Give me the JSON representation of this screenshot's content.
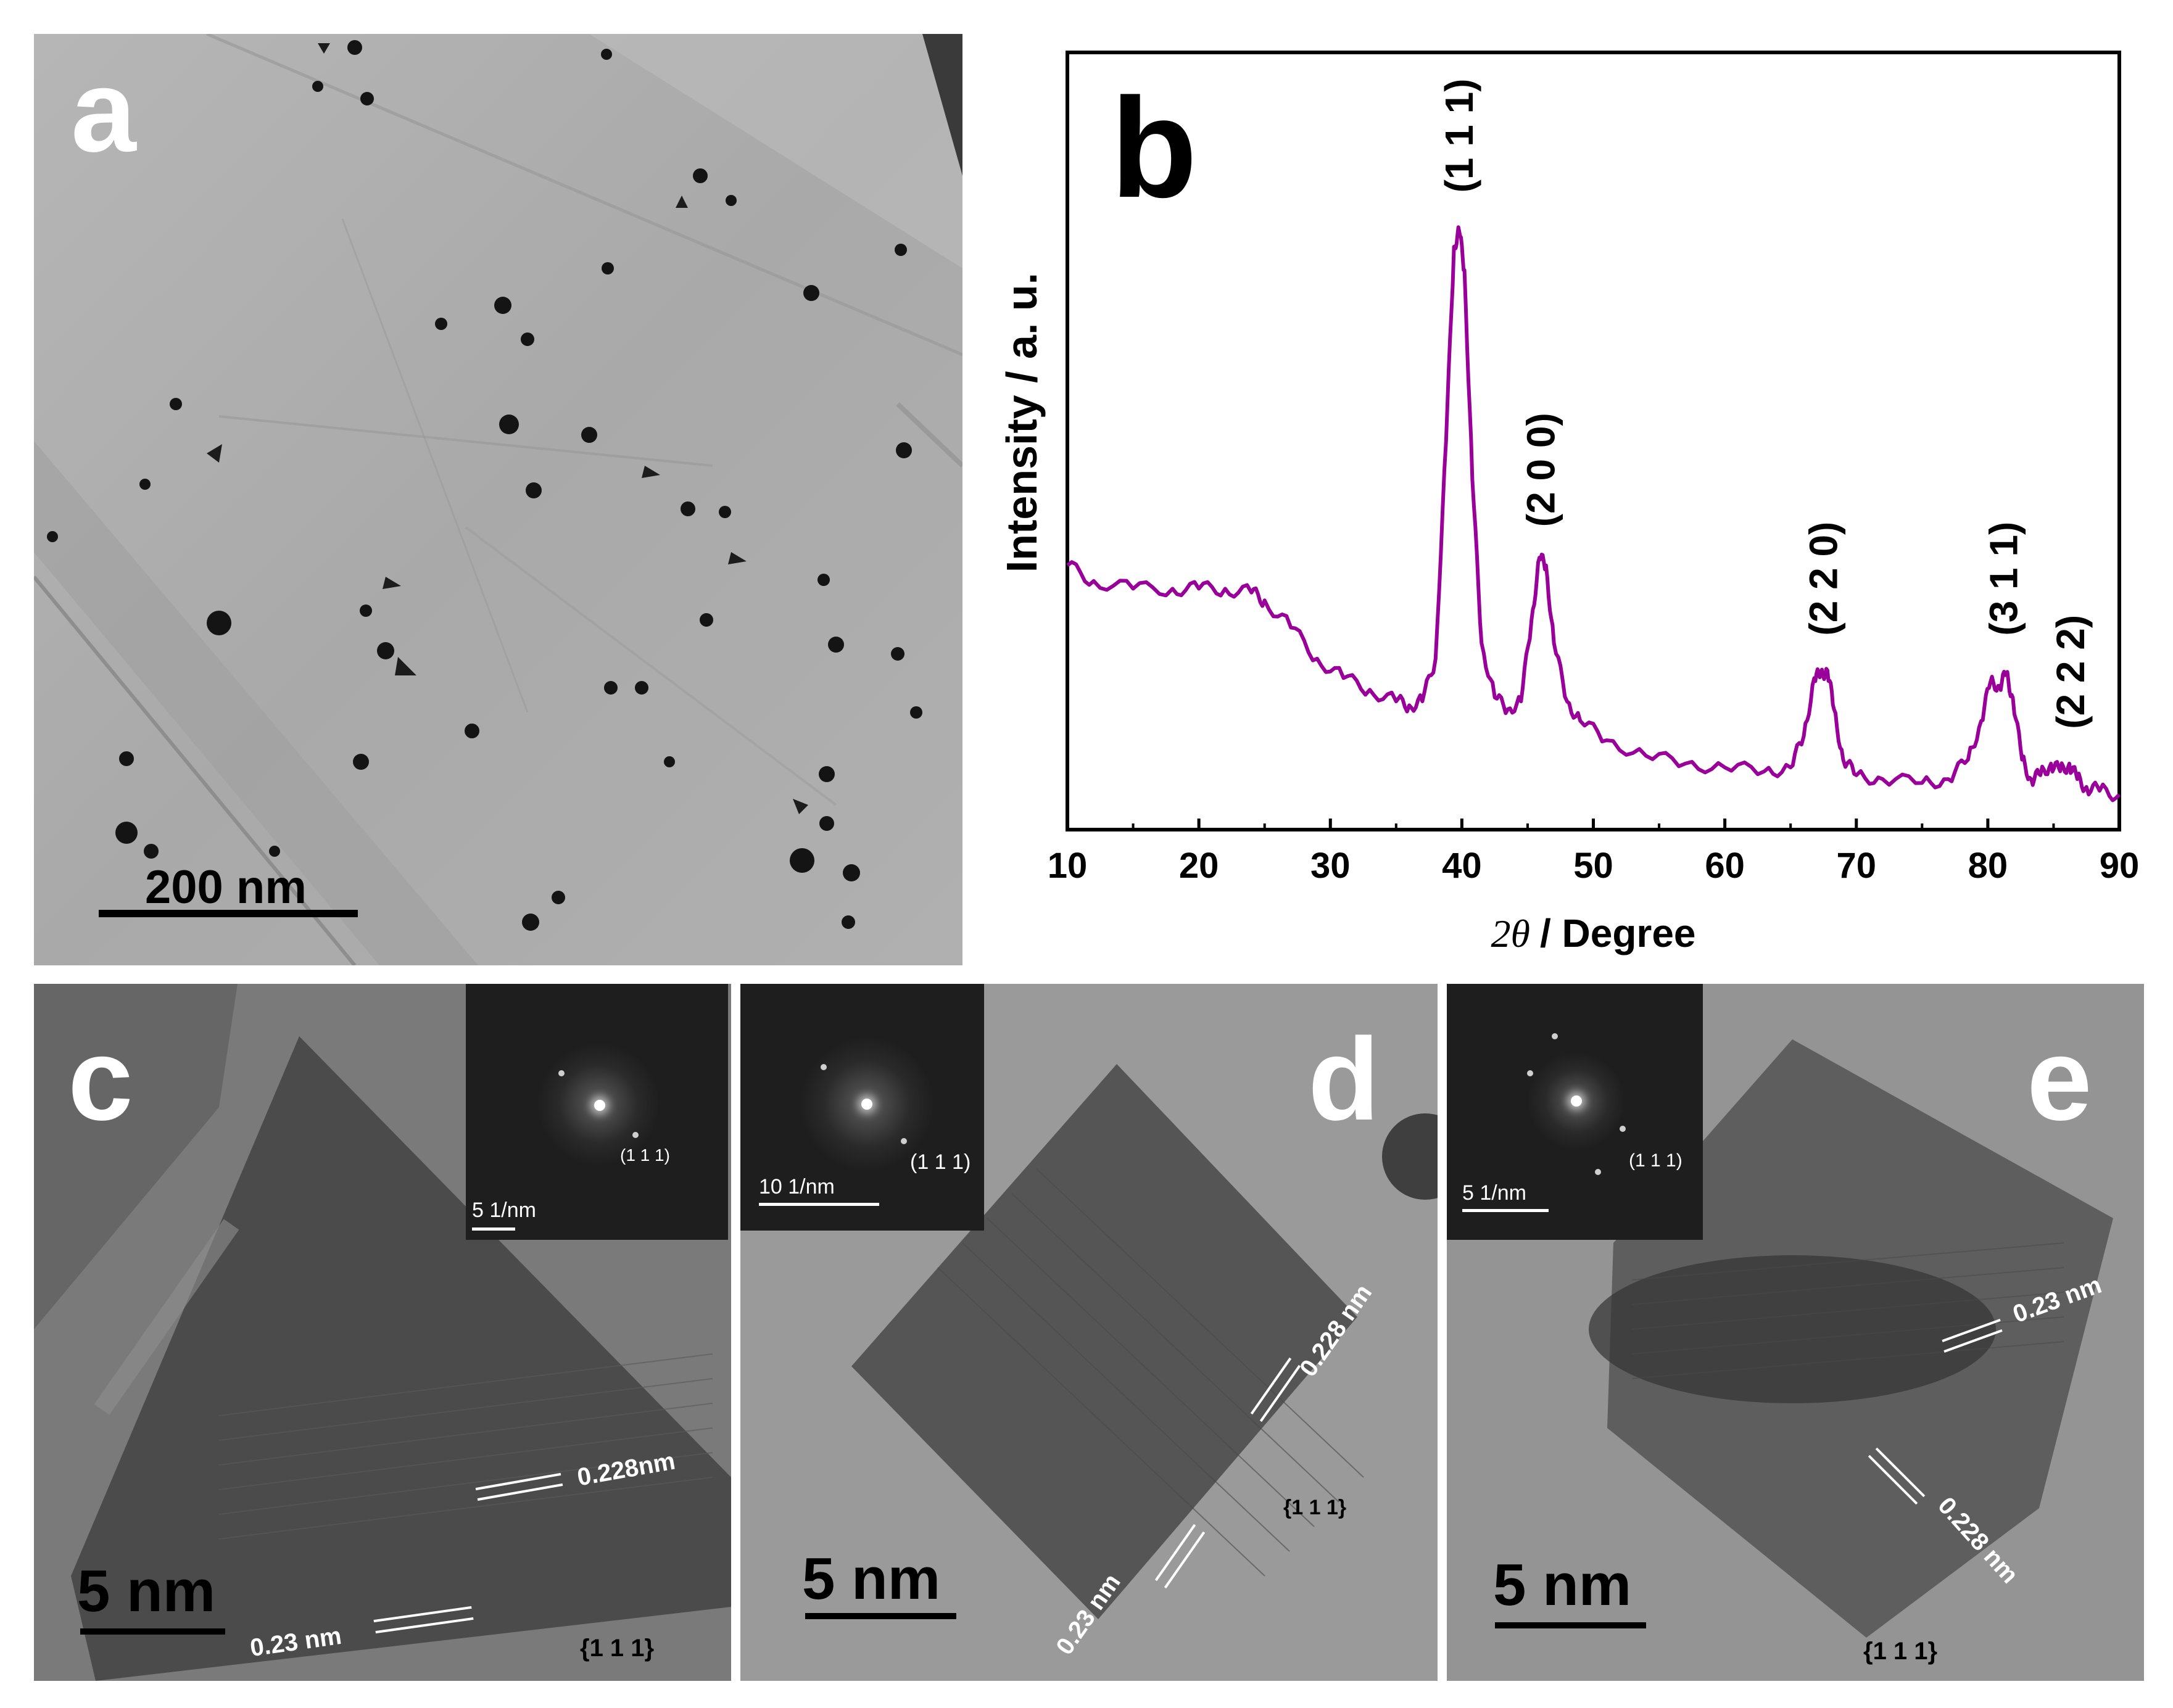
{
  "panels": {
    "a": {
      "letter": "a",
      "scale_label": "200 nm"
    },
    "b": {
      "letter": "b",
      "peak_labels": [
        "(1 1 1)",
        "(2 0 0)",
        "(2 2 0)",
        "(3 1 1)",
        "(2 2 2)"
      ]
    },
    "c": {
      "letter": "c",
      "scale_label": "5 nm",
      "inset_scale": "5 1/nm",
      "inset_spot": "(1 1 1)",
      "spacing_1": "0.228nm",
      "spacing_2": "0.23 nm",
      "facet": "{1 1 1}"
    },
    "d": {
      "letter": "d",
      "scale_label": "5 nm",
      "inset_scale": "10 1/nm",
      "inset_spot": "(1 1 1)",
      "spacing_1": "0.228 nm",
      "spacing_2": "0.23 nm",
      "facet": "{1 1 1}"
    },
    "e": {
      "letter": "e",
      "scale_label": "5 nm",
      "inset_scale": "5 1/nm",
      "inset_spot": "(1 1 1)",
      "spacing_1": "0.23 nm",
      "spacing_2": "0.228 nm",
      "facet": "{1 1 1}"
    }
  },
  "chart_data": {
    "type": "line",
    "xlabel_symbol": "2θ",
    "xlabel_text": "/ Degree",
    "ylabel": "Intensity / a. u.",
    "xlim": [
      10,
      90
    ],
    "ylim": [
      0,
      100
    ],
    "xticks": [
      10,
      20,
      30,
      40,
      50,
      60,
      70,
      80,
      90
    ],
    "yticks_labeled": false,
    "series": [
      {
        "color": "#990099",
        "x": [
          10,
          12,
          15,
          18,
          20,
          22,
          24,
          25,
          27,
          29,
          31,
          33,
          35,
          36,
          37,
          38,
          38.8,
          39.4,
          39.8,
          40.2,
          40.8,
          41.5,
          42.5,
          43.5,
          44.5,
          45.3,
          45.9,
          46.4,
          47,
          48,
          49,
          51,
          54,
          57,
          60,
          63,
          65,
          66,
          66.8,
          67.3,
          67.8,
          68.3,
          69,
          70,
          72,
          75,
          77,
          78.5,
          79.5,
          80.2,
          80.9,
          81.4,
          81.9,
          82.6,
          83.3,
          84,
          84.8,
          85.5,
          86.2,
          86.8,
          87.5,
          88.5,
          90
        ],
        "y": [
          34,
          32,
          31,
          31,
          31,
          31,
          30.5,
          29.5,
          26,
          22,
          19.5,
          18,
          16.5,
          16,
          16.5,
          22,
          50,
          75,
          77,
          72,
          45,
          24,
          17,
          15.5,
          16.5,
          27,
          35,
          34,
          24,
          16.5,
          14,
          11.5,
          9.5,
          8.5,
          8,
          7.5,
          8,
          12,
          19.5,
          20,
          20.5,
          15.5,
          9,
          7,
          6.5,
          6,
          6.5,
          9,
          14,
          19,
          18.5,
          20,
          17,
          9,
          6.5,
          7,
          8.5,
          7.5,
          8.5,
          6.5,
          5.5,
          5,
          4.5
        ]
      }
    ]
  }
}
